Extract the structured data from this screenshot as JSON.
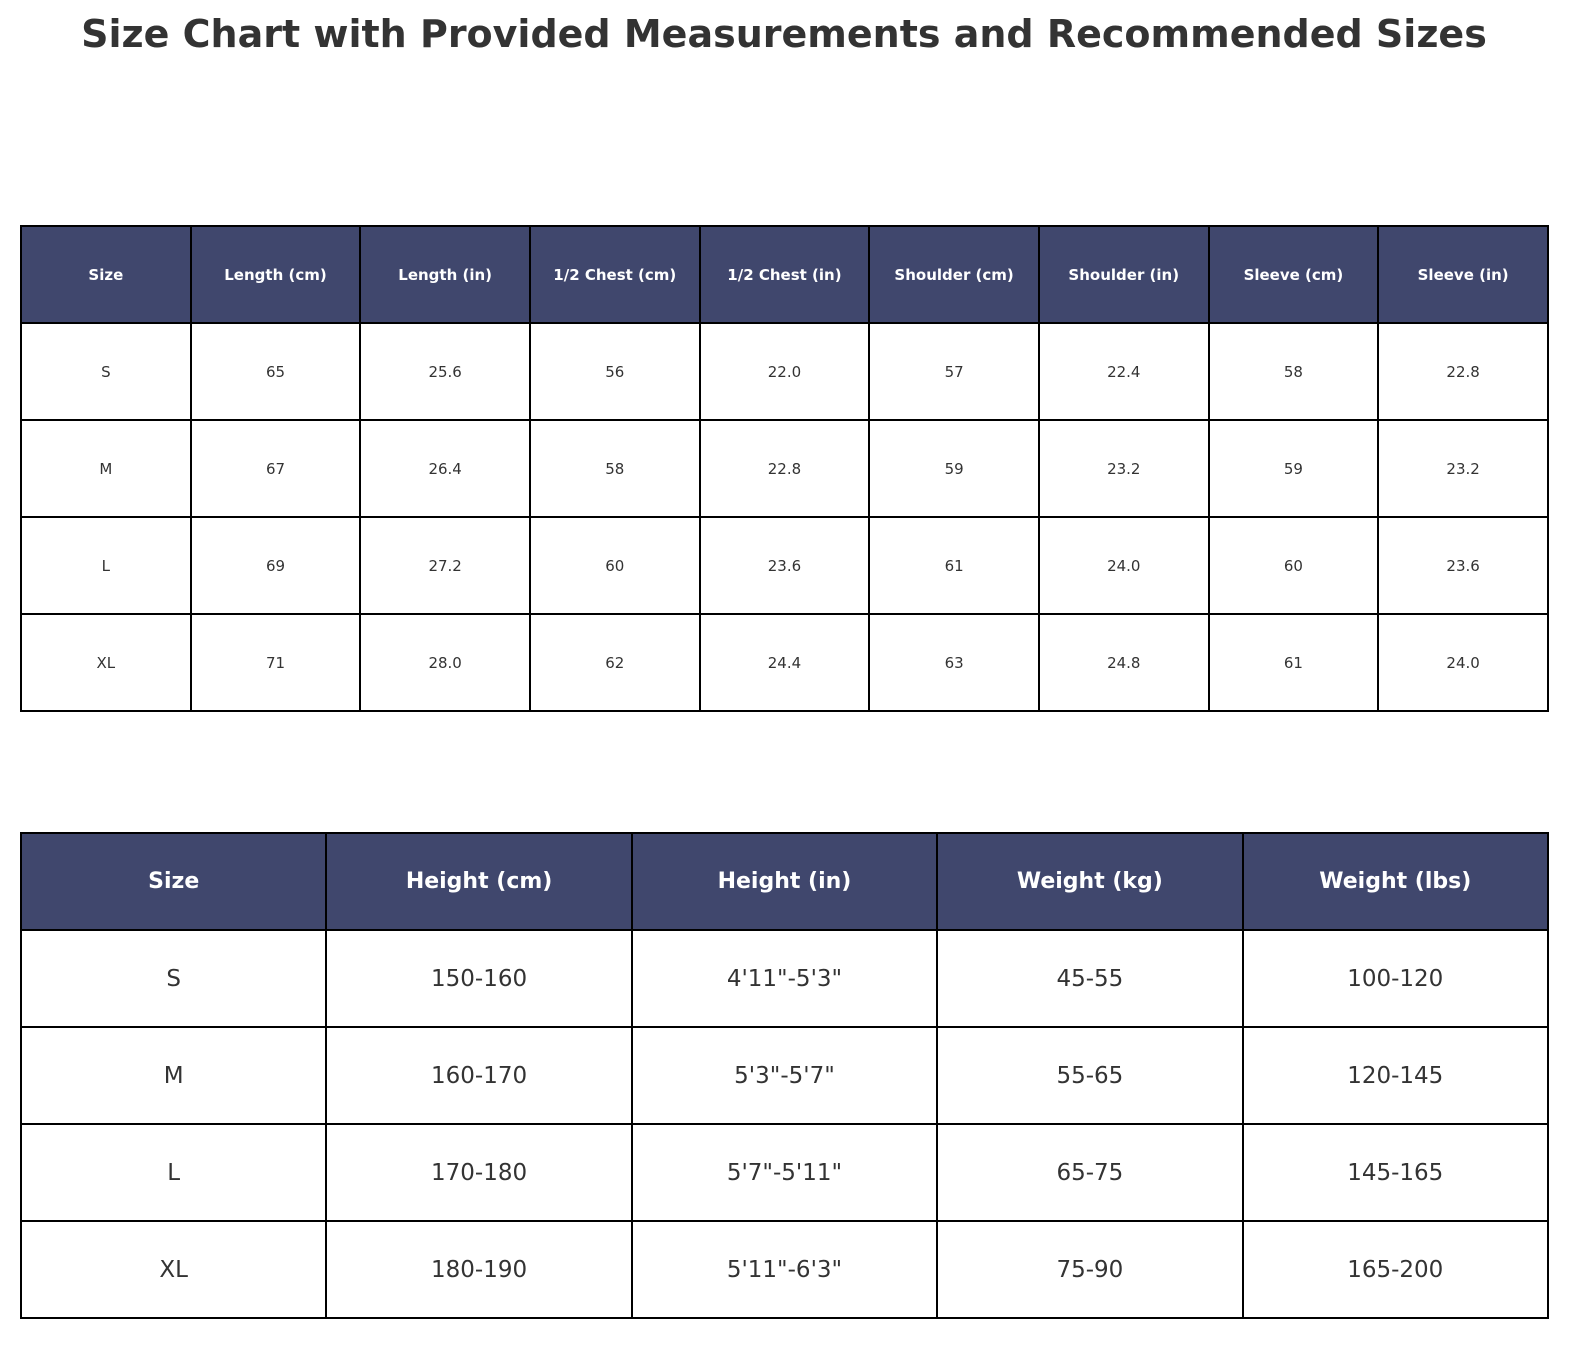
{
  "title": "Size Chart with Provided Measurements and Recommended Sizes",
  "measurements": {
    "header": [
      "Size",
      "Length (cm)",
      "Length (in)",
      "1/2 Chest (cm)",
      "1/2 Chest (in)",
      "Shoulder (cm)",
      "Shoulder (in)",
      "Sleeve (cm)",
      "Sleeve (in)"
    ],
    "rows": [
      [
        "S",
        "65",
        "25.6",
        "56",
        "22.0",
        "57",
        "22.4",
        "58",
        "22.8"
      ],
      [
        "M",
        "67",
        "26.4",
        "58",
        "22.8",
        "59",
        "23.2",
        "59",
        "23.2"
      ],
      [
        "L",
        "69",
        "27.2",
        "60",
        "23.6",
        "61",
        "24.0",
        "60",
        "23.6"
      ],
      [
        "XL",
        "71",
        "28.0",
        "62",
        "24.4",
        "63",
        "24.8",
        "61",
        "24.0"
      ]
    ]
  },
  "recommended": {
    "header": [
      "Size",
      "Height (cm)",
      "Height (in)",
      "Weight (kg)",
      "Weight (lbs)"
    ],
    "rows": [
      [
        "S",
        "150-160",
        "4'11\"-5'3\"",
        "45-55",
        "100-120"
      ],
      [
        "M",
        "160-170",
        "5'3\"-5'7\"",
        "55-65",
        "120-145"
      ],
      [
        "L",
        "170-180",
        "5'7\"-5'11\"",
        "65-75",
        "145-165"
      ],
      [
        "XL",
        "180-190",
        "5'11\"-6'3\"",
        "75-90",
        "165-200"
      ]
    ]
  }
}
